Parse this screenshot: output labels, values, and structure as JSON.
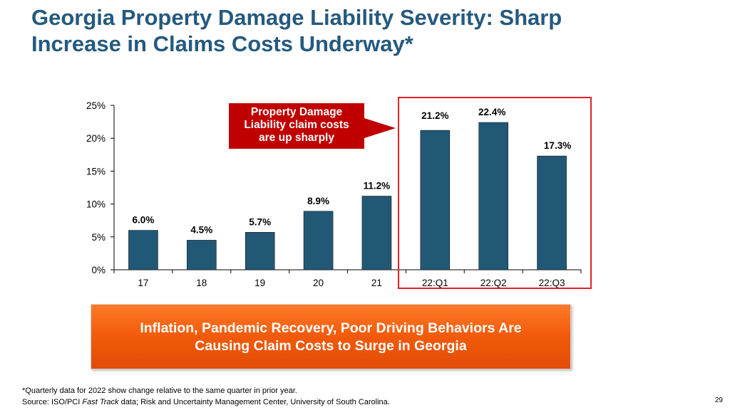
{
  "title": {
    "line1": "Georgia Property Damage Liability Severity: Sharp",
    "line2": "Increase in Claims Costs Underway*"
  },
  "callout": {
    "line1": "Property Damage",
    "line2": "Liability claim costs",
    "line3": "are up sharply"
  },
  "banner": {
    "line1": "Inflation, Pandemic Recovery, Poor Driving Behaviors Are",
    "line2": "Causing Claim Costs to Surge in Georgia"
  },
  "footnote": {
    "line1": "*Quarterly data for 2022 show change relative to the same quarter in prior year.",
    "source_prefix": "Source: ISO/PCI ",
    "source_italic": "Fast Track",
    "source_suffix": " data; Risk and Uncertainty Management Center, University of South Carolina."
  },
  "page_number": "29",
  "colors": {
    "title": "#245a7e",
    "bar": "#215875",
    "callout": "#c00000",
    "highlight": "#e0202a",
    "banner": "#f15a0a"
  },
  "chart_data": {
    "type": "bar",
    "title": "",
    "xlabel": "",
    "ylabel": "",
    "categories": [
      "17",
      "18",
      "19",
      "20",
      "21",
      "22:Q1",
      "22:Q2",
      "22:Q3"
    ],
    "values": [
      6.0,
      4.5,
      5.7,
      8.9,
      11.2,
      21.2,
      22.4,
      17.3
    ],
    "labels": [
      "6.0%",
      "4.5%",
      "5.7%",
      "8.9%",
      "11.2%",
      "21.2%",
      "22.4%",
      "17.3%"
    ],
    "ylim": [
      0,
      25
    ],
    "yticks": [
      0,
      5,
      10,
      15,
      20,
      25
    ],
    "ytick_labels": [
      "0%",
      "5%",
      "10%",
      "15%",
      "20%",
      "25%"
    ],
    "grid": false
  }
}
